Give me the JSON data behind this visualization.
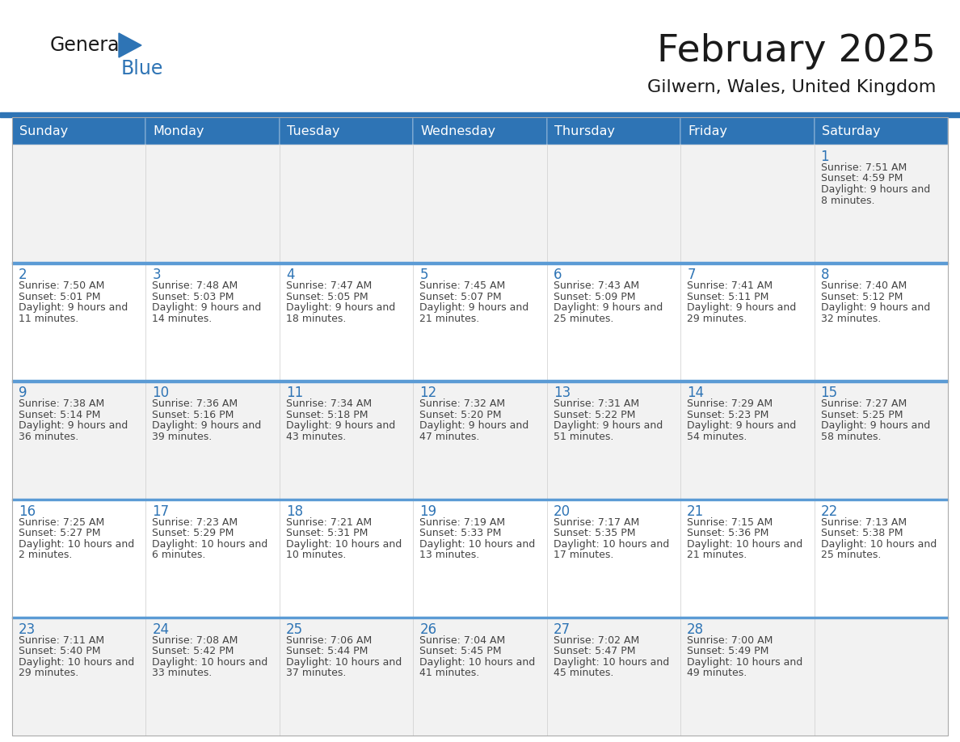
{
  "title": "February 2025",
  "subtitle": "Gilwern, Wales, United Kingdom",
  "header_bg": "#2E74B5",
  "header_text": "#FFFFFF",
  "header_days": [
    "Sunday",
    "Monday",
    "Tuesday",
    "Wednesday",
    "Thursday",
    "Friday",
    "Saturday"
  ],
  "row1_bg": "#F2F2F2",
  "row2_bg": "#FFFFFF",
  "row3_bg": "#F2F2F2",
  "row4_bg": "#FFFFFF",
  "row5_bg": "#F2F2F2",
  "cell_border": "#CCCCCC",
  "day_number_color": "#2E74B5",
  "text_color": "#444444",
  "separator_color": "#2E74B5",
  "row_separator_color": "#5B9BD5",
  "calendar_data": [
    [
      null,
      null,
      null,
      null,
      null,
      null,
      {
        "day": 1,
        "sunrise": "7:51 AM",
        "sunset": "4:59 PM",
        "daylight": "9 hours and 8 minutes"
      }
    ],
    [
      {
        "day": 2,
        "sunrise": "7:50 AM",
        "sunset": "5:01 PM",
        "daylight": "9 hours and 11 minutes"
      },
      {
        "day": 3,
        "sunrise": "7:48 AM",
        "sunset": "5:03 PM",
        "daylight": "9 hours and 14 minutes"
      },
      {
        "day": 4,
        "sunrise": "7:47 AM",
        "sunset": "5:05 PM",
        "daylight": "9 hours and 18 minutes"
      },
      {
        "day": 5,
        "sunrise": "7:45 AM",
        "sunset": "5:07 PM",
        "daylight": "9 hours and 21 minutes"
      },
      {
        "day": 6,
        "sunrise": "7:43 AM",
        "sunset": "5:09 PM",
        "daylight": "9 hours and 25 minutes"
      },
      {
        "day": 7,
        "sunrise": "7:41 AM",
        "sunset": "5:11 PM",
        "daylight": "9 hours and 29 minutes"
      },
      {
        "day": 8,
        "sunrise": "7:40 AM",
        "sunset": "5:12 PM",
        "daylight": "9 hours and 32 minutes"
      }
    ],
    [
      {
        "day": 9,
        "sunrise": "7:38 AM",
        "sunset": "5:14 PM",
        "daylight": "9 hours and 36 minutes"
      },
      {
        "day": 10,
        "sunrise": "7:36 AM",
        "sunset": "5:16 PM",
        "daylight": "9 hours and 39 minutes"
      },
      {
        "day": 11,
        "sunrise": "7:34 AM",
        "sunset": "5:18 PM",
        "daylight": "9 hours and 43 minutes"
      },
      {
        "day": 12,
        "sunrise": "7:32 AM",
        "sunset": "5:20 PM",
        "daylight": "9 hours and 47 minutes"
      },
      {
        "day": 13,
        "sunrise": "7:31 AM",
        "sunset": "5:22 PM",
        "daylight": "9 hours and 51 minutes"
      },
      {
        "day": 14,
        "sunrise": "7:29 AM",
        "sunset": "5:23 PM",
        "daylight": "9 hours and 54 minutes"
      },
      {
        "day": 15,
        "sunrise": "7:27 AM",
        "sunset": "5:25 PM",
        "daylight": "9 hours and 58 minutes"
      }
    ],
    [
      {
        "day": 16,
        "sunrise": "7:25 AM",
        "sunset": "5:27 PM",
        "daylight": "10 hours and 2 minutes"
      },
      {
        "day": 17,
        "sunrise": "7:23 AM",
        "sunset": "5:29 PM",
        "daylight": "10 hours and 6 minutes"
      },
      {
        "day": 18,
        "sunrise": "7:21 AM",
        "sunset": "5:31 PM",
        "daylight": "10 hours and 10 minutes"
      },
      {
        "day": 19,
        "sunrise": "7:19 AM",
        "sunset": "5:33 PM",
        "daylight": "10 hours and 13 minutes"
      },
      {
        "day": 20,
        "sunrise": "7:17 AM",
        "sunset": "5:35 PM",
        "daylight": "10 hours and 17 minutes"
      },
      {
        "day": 21,
        "sunrise": "7:15 AM",
        "sunset": "5:36 PM",
        "daylight": "10 hours and 21 minutes"
      },
      {
        "day": 22,
        "sunrise": "7:13 AM",
        "sunset": "5:38 PM",
        "daylight": "10 hours and 25 minutes"
      }
    ],
    [
      {
        "day": 23,
        "sunrise": "7:11 AM",
        "sunset": "5:40 PM",
        "daylight": "10 hours and 29 minutes"
      },
      {
        "day": 24,
        "sunrise": "7:08 AM",
        "sunset": "5:42 PM",
        "daylight": "10 hours and 33 minutes"
      },
      {
        "day": 25,
        "sunrise": "7:06 AM",
        "sunset": "5:44 PM",
        "daylight": "10 hours and 37 minutes"
      },
      {
        "day": 26,
        "sunrise": "7:04 AM",
        "sunset": "5:45 PM",
        "daylight": "10 hours and 41 minutes"
      },
      {
        "day": 27,
        "sunrise": "7:02 AM",
        "sunset": "5:47 PM",
        "daylight": "10 hours and 45 minutes"
      },
      {
        "day": 28,
        "sunrise": "7:00 AM",
        "sunset": "5:49 PM",
        "daylight": "10 hours and 49 minutes"
      },
      null
    ]
  ]
}
